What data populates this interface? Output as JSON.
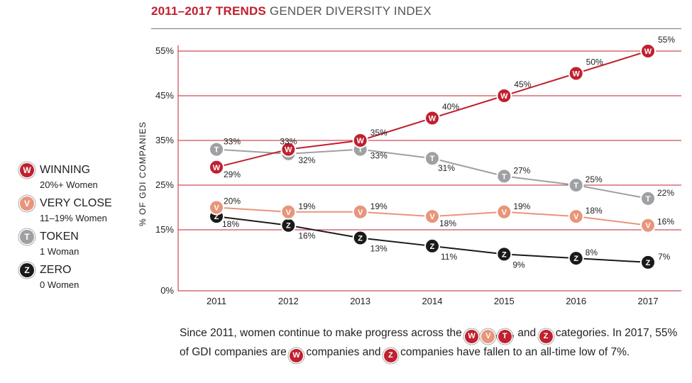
{
  "header": {
    "title_strong": "2011–2017 TRENDS",
    "title_rest": "GENDER DIVERSITY INDEX"
  },
  "legend": [
    {
      "letter": "W",
      "name": "WINNING",
      "sub": "20%+ Women",
      "color": "#c0202f"
    },
    {
      "letter": "V",
      "name": "VERY CLOSE",
      "sub": "11–19% Women",
      "color": "#e8957b"
    },
    {
      "letter": "T",
      "name": "TOKEN",
      "sub": "1 Woman",
      "color": "#9fa0a3"
    },
    {
      "letter": "Z",
      "name": "ZERO",
      "sub": "0 Women",
      "color": "#1a1a1a"
    }
  ],
  "caption": {
    "p1": "Since 2011, women continue to make progress across the",
    "p2": ",",
    "p3": ",",
    "p4": ", and",
    "p5": "categories. In 2017, 55% of GDI companies are",
    "p6": "companies and",
    "p7": "companies have fallen to an all-time low of 7%."
  },
  "chart_data": {
    "type": "line",
    "ylabel": "% OF GDI COMPANIES",
    "xlabel": "",
    "categories": [
      "2011",
      "2012",
      "2013",
      "2014",
      "2015",
      "2016",
      "2017"
    ],
    "yticks": [
      0,
      15,
      25,
      35,
      45,
      55
    ],
    "ytick_labels": [
      "0%",
      "15%",
      "25%",
      "35%",
      "45%",
      "55%"
    ],
    "ylim": [
      0,
      55
    ],
    "grid_color": "#c0202f",
    "series": [
      {
        "name": "TOKEN",
        "letter": "T",
        "color": "#9fa0a3",
        "values": [
          33,
          32,
          33,
          31,
          27,
          25,
          22
        ],
        "labels": [
          "33%",
          "32%",
          "33%",
          "31%",
          "27%",
          "25%",
          "22%"
        ]
      },
      {
        "name": "ZERO",
        "letter": "Z",
        "color": "#1a1a1a",
        "values": [
          18,
          16,
          13,
          11,
          9,
          8,
          7
        ],
        "labels": [
          "18%",
          "16%",
          "13%",
          "11%",
          "9%",
          "8%",
          "7%"
        ]
      },
      {
        "name": "VERY CLOSE",
        "letter": "V",
        "color": "#e8957b",
        "values": [
          20,
          19,
          19,
          18,
          19,
          18,
          16
        ],
        "labels": [
          "20%",
          "19%",
          "19%",
          "18%",
          "19%",
          "18%",
          "16%"
        ]
      },
      {
        "name": "WINNING",
        "letter": "W",
        "color": "#c0202f",
        "values": [
          29,
          33,
          35,
          40,
          45,
          50,
          55
        ],
        "labels": [
          "29%",
          "33%",
          "35%",
          "40%",
          "45%",
          "50%",
          "55%"
        ]
      }
    ]
  }
}
